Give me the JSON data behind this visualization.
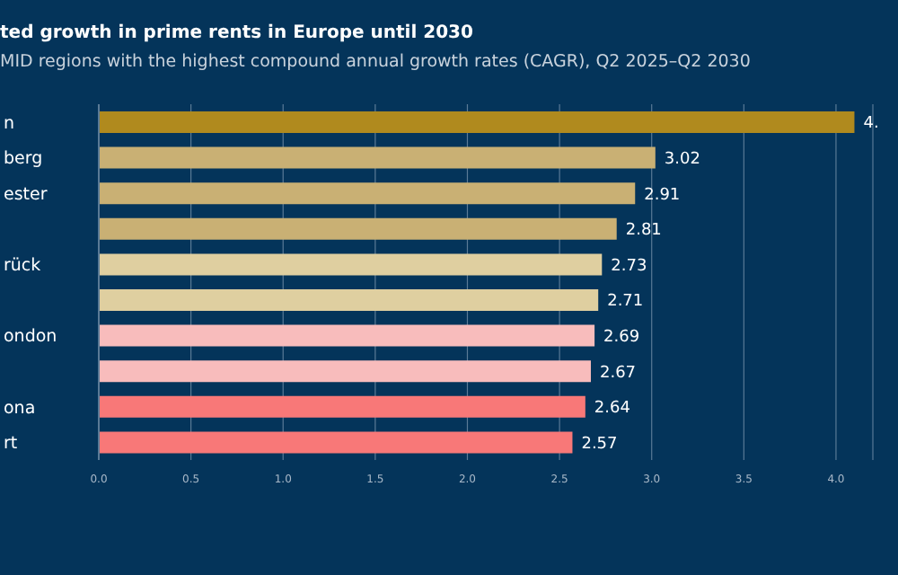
{
  "chart_data": {
    "type": "bar",
    "orientation": "horizontal",
    "title": "ted growth in prime rents in Europe until 2030",
    "subtitle": "MID regions with the highest compound annual growth rates (CAGR), Q2 2025–Q2 2030",
    "categories": [
      "n",
      "berg",
      "ester",
      null,
      "rück",
      null,
      "ondon",
      null,
      "ona",
      "rt"
    ],
    "values": [
      4.1,
      3.02,
      2.91,
      2.81,
      2.73,
      2.71,
      2.69,
      2.67,
      2.64,
      2.57
    ],
    "value_labels": [
      "4.",
      "3.02",
      "2.91",
      "2.81",
      "2.73",
      "2.71",
      "2.69",
      "2.67",
      "2.64",
      "2.57"
    ],
    "colors": [
      "#b08a1e",
      "#c9b074",
      "#c9b074",
      "#c9b074",
      "#dfcfa0",
      "#dfcfa0",
      "#f8bcbc",
      "#f8bcbc",
      "#f87878",
      "#f87878"
    ],
    "xlim": [
      0,
      4.2
    ],
    "xticks": [
      {
        "value": 0,
        "label": "0.0"
      },
      {
        "value": 0.5,
        "label": "0.5"
      },
      {
        "value": 1,
        "label": "1.0"
      },
      {
        "value": 1.5,
        "label": "1.5"
      },
      {
        "value": 2,
        "label": "2.0"
      },
      {
        "value": 2.5,
        "label": "2.5"
      },
      {
        "value": 3,
        "label": "3.0"
      },
      {
        "value": 3.5,
        "label": "3.5"
      },
      {
        "value": 4,
        "label": "4.0"
      }
    ],
    "grid": "x"
  }
}
